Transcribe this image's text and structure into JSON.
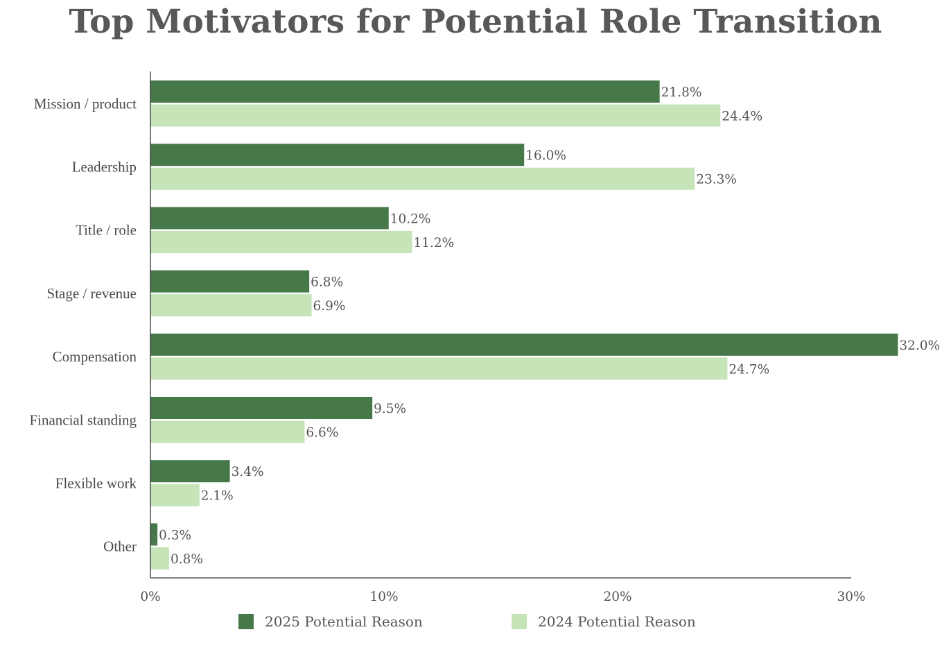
{
  "chart_data": {
    "type": "bar",
    "orientation": "horizontal",
    "title": "Top Motivators for Potential Role Transition",
    "categories": [
      "Mission / product",
      "Leadership",
      "Title / role",
      "Stage / revenue",
      "Compensation",
      "Financial standing",
      "Flexible work",
      "Other"
    ],
    "series": [
      {
        "name": "2025 Potential Reason",
        "color": "#47784a",
        "values": [
          21.8,
          16.0,
          10.2,
          6.8,
          32.0,
          9.5,
          3.4,
          0.3
        ],
        "labels": [
          "21.8%",
          "16.0%",
          "10.2%",
          "6.8%",
          "32.0%",
          "9.5%",
          "3.4%",
          "0.3%"
        ]
      },
      {
        "name": "2024 Potential Reason",
        "color": "#c5e4b8",
        "values": [
          24.4,
          23.3,
          11.2,
          6.9,
          24.7,
          6.6,
          2.1,
          0.8
        ],
        "labels": [
          "24.4%",
          "23.3%",
          "11.2%",
          "6.9%",
          "24.7%",
          "6.6%",
          "2.1%",
          "0.8%"
        ]
      }
    ],
    "xlim": [
      0,
      30
    ],
    "xticks": [
      0,
      10,
      20,
      30
    ],
    "xtick_labels": [
      "0%",
      "10%",
      "20%",
      "30%"
    ],
    "grid": false,
    "legend_position": "bottom"
  }
}
